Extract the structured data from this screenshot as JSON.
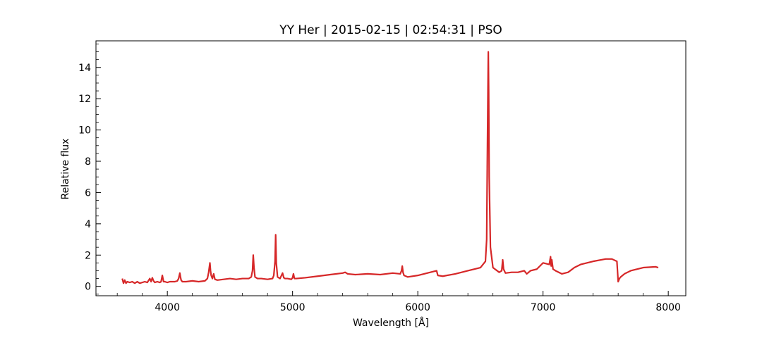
{
  "chart_data": {
    "type": "line",
    "title": "YY Her | 2015-02-15 | 02:54:31 | PSO",
    "xlabel": "Wavelength [Å]",
    "ylabel": "Relative flux",
    "xlim": [
      3430,
      8140
    ],
    "ylim": [
      -0.6,
      15.7
    ],
    "xticks": [
      4000,
      5000,
      6000,
      7000,
      8000
    ],
    "yticks": [
      0,
      2,
      4,
      6,
      8,
      10,
      12,
      14
    ],
    "x_minor_step": 200,
    "y_minor_step": 0.5,
    "grid": false,
    "line_color": "#d62728",
    "series": [
      {
        "x": [
          3640,
          3650,
          3660,
          3670,
          3680,
          3700,
          3720,
          3740,
          3760,
          3780,
          3800,
          3820,
          3840,
          3860,
          3870,
          3880,
          3890,
          3900,
          3920,
          3940,
          3950,
          3960,
          3965,
          3970,
          3980,
          4000,
          4020,
          4040,
          4060,
          4080,
          4090,
          4100,
          4105,
          4110,
          4120,
          4150,
          4200,
          4250,
          4300,
          4320,
          4330,
          4340,
          4345,
          4350,
          4360,
          4370,
          4380,
          4400,
          4450,
          4500,
          4550,
          4600,
          4650,
          4670,
          4680,
          4686,
          4692,
          4700,
          4720,
          4750,
          4800,
          4840,
          4850,
          4860,
          4865,
          4870,
          4880,
          4900,
          4920,
          4930,
          4940,
          4960,
          4990,
          5000,
          5007,
          5015,
          5030,
          5100,
          5200,
          5300,
          5400,
          5420,
          5440,
          5500,
          5600,
          5700,
          5800,
          5860,
          5870,
          5876,
          5882,
          5890,
          5920,
          6000,
          6100,
          6150,
          6160,
          6200,
          6300,
          6400,
          6500,
          6540,
          6550,
          6555,
          6560,
          6563,
          6566,
          6570,
          6580,
          6600,
          6650,
          6670,
          6678,
          6685,
          6700,
          6750,
          6800,
          6850,
          6870,
          6900,
          6950,
          7000,
          7050,
          7060,
          7065,
          7070,
          7080,
          7100,
          7150,
          7200,
          7250,
          7300,
          7400,
          7500,
          7550,
          7590,
          7600,
          7610,
          7620,
          7650,
          7700,
          7800,
          7900,
          7920
        ],
        "y": [
          0.5,
          0.2,
          0.4,
          0.2,
          0.3,
          0.25,
          0.3,
          0.2,
          0.3,
          0.2,
          0.25,
          0.3,
          0.25,
          0.5,
          0.3,
          0.55,
          0.35,
          0.25,
          0.3,
          0.25,
          0.3,
          0.7,
          0.5,
          0.3,
          0.3,
          0.25,
          0.3,
          0.3,
          0.3,
          0.35,
          0.5,
          0.85,
          0.6,
          0.4,
          0.3,
          0.3,
          0.35,
          0.3,
          0.35,
          0.5,
          0.9,
          1.5,
          1.0,
          0.7,
          0.5,
          0.8,
          0.45,
          0.4,
          0.45,
          0.5,
          0.45,
          0.5,
          0.5,
          0.6,
          1.0,
          2.0,
          1.2,
          0.6,
          0.5,
          0.5,
          0.45,
          0.5,
          0.7,
          1.6,
          3.3,
          1.5,
          0.6,
          0.5,
          0.85,
          0.55,
          0.5,
          0.5,
          0.45,
          0.55,
          0.8,
          0.5,
          0.5,
          0.55,
          0.65,
          0.75,
          0.85,
          0.9,
          0.8,
          0.75,
          0.8,
          0.75,
          0.85,
          0.8,
          1.0,
          1.3,
          0.9,
          0.7,
          0.6,
          0.7,
          0.9,
          1.0,
          0.7,
          0.65,
          0.8,
          1.0,
          1.2,
          1.6,
          3.0,
          8.0,
          12.5,
          15.0,
          12.5,
          7.0,
          2.5,
          1.2,
          0.9,
          1.0,
          1.7,
          1.1,
          0.85,
          0.9,
          0.9,
          1.0,
          0.8,
          1.0,
          1.1,
          1.5,
          1.4,
          1.9,
          1.3,
          1.7,
          1.1,
          1.0,
          0.8,
          0.9,
          1.2,
          1.4,
          1.6,
          1.75,
          1.75,
          1.6,
          0.3,
          0.5,
          0.6,
          0.8,
          1.0,
          1.2,
          1.25,
          1.2
        ]
      }
    ]
  }
}
